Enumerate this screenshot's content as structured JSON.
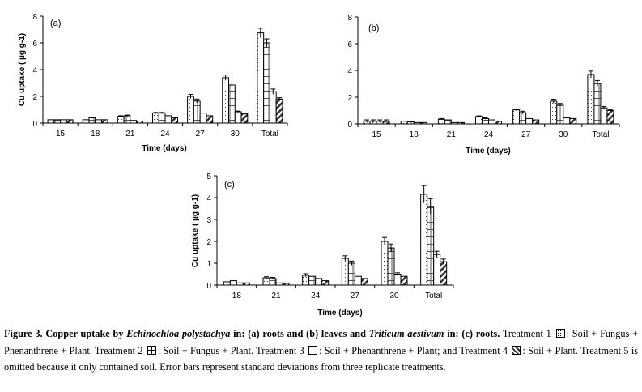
{
  "chart_data": [
    {
      "type": "bar",
      "panel": "(a)",
      "title": "",
      "xlabel": "Time (days)",
      "ylabel": "Cu uptake ( µg g-1)",
      "ylim": [
        0,
        8
      ],
      "yticks": [
        "0",
        "2",
        "4",
        "6",
        "8"
      ],
      "categories": [
        "15",
        "18",
        "21",
        "24",
        "27",
        "30",
        "Total"
      ],
      "series": [
        {
          "name": "Treatment 1",
          "values": [
            0.25,
            0.25,
            0.5,
            0.75,
            2.0,
            3.4,
            6.75
          ],
          "errors": [
            0.02,
            0.02,
            0.05,
            0.05,
            0.15,
            0.2,
            0.35
          ]
        },
        {
          "name": "Treatment 2",
          "values": [
            0.25,
            0.4,
            0.55,
            0.75,
            1.65,
            2.85,
            6.0
          ],
          "errors": [
            0.02,
            0.05,
            0.05,
            0.05,
            0.15,
            0.15,
            0.3
          ]
        },
        {
          "name": "Treatment 3",
          "values": [
            0.25,
            0.25,
            0.2,
            0.55,
            0.75,
            0.85,
            2.35
          ],
          "errors": [
            0.02,
            0.02,
            0.03,
            0.03,
            0.03,
            0.05,
            0.2
          ]
        },
        {
          "name": "Treatment 4",
          "values": [
            0.25,
            0.25,
            0.15,
            0.4,
            0.55,
            0.7,
            1.8
          ],
          "errors": [
            0.02,
            0.02,
            0.03,
            0.05,
            0.03,
            0.05,
            0.1
          ]
        }
      ]
    },
    {
      "type": "bar",
      "panel": "(b)",
      "title": "",
      "xlabel": "Time (days)",
      "ylabel": "",
      "ylim": [
        0,
        8
      ],
      "yticks": [
        "0",
        "2",
        "4",
        "6",
        "8"
      ],
      "categories": [
        "15",
        "18",
        "21",
        "24",
        "27",
        "30",
        "Total"
      ],
      "series": [
        {
          "name": "Treatment 1",
          "values": [
            0.2,
            0.2,
            0.35,
            0.55,
            1.05,
            1.7,
            3.7
          ],
          "errors": [
            0.1,
            0.02,
            0.05,
            0.05,
            0.05,
            0.15,
            0.25
          ]
        },
        {
          "name": "Treatment 2",
          "values": [
            0.2,
            0.15,
            0.3,
            0.4,
            0.85,
            1.45,
            3.05
          ],
          "errors": [
            0.1,
            0.02,
            0.02,
            0.05,
            0.1,
            0.08,
            0.2
          ]
        },
        {
          "name": "Treatment 3",
          "values": [
            0.2,
            0.1,
            0.1,
            0.3,
            0.4,
            0.45,
            1.2
          ],
          "errors": [
            0.1,
            0.01,
            0.01,
            0.02,
            0.03,
            0.03,
            0.1
          ]
        },
        {
          "name": "Treatment 4",
          "values": [
            0.2,
            0.1,
            0.1,
            0.2,
            0.3,
            0.4,
            1.0
          ],
          "errors": [
            0.1,
            0.01,
            0.01,
            0.02,
            0.02,
            0.03,
            0.05
          ]
        }
      ]
    },
    {
      "type": "bar",
      "panel": "(c)",
      "title": "",
      "xlabel": "Time (days)",
      "ylabel": "Cu uptake ( µg g-1)",
      "ylim": [
        0,
        5
      ],
      "yticks": [
        "0",
        "1",
        "2",
        "3",
        "4",
        "5"
      ],
      "categories": [
        "18",
        "21",
        "24",
        "27",
        "30",
        "Total"
      ],
      "series": [
        {
          "name": "Treatment 1",
          "values": [
            0.15,
            0.33,
            0.45,
            1.22,
            2.0,
            4.15
          ],
          "errors": [
            0.01,
            0.05,
            0.07,
            0.12,
            0.18,
            0.4
          ]
        },
        {
          "name": "Treatment 2",
          "values": [
            0.2,
            0.3,
            0.4,
            1.0,
            1.7,
            3.6
          ],
          "errors": [
            0.02,
            0.05,
            0.04,
            0.1,
            0.18,
            0.35
          ]
        },
        {
          "name": "Treatment 3",
          "values": [
            0.1,
            0.1,
            0.3,
            0.4,
            0.5,
            1.4
          ],
          "errors": [
            0.01,
            0.01,
            0.03,
            0.04,
            0.06,
            0.15
          ]
        },
        {
          "name": "Treatment 4",
          "values": [
            0.1,
            0.08,
            0.2,
            0.3,
            0.4,
            1.07
          ],
          "errors": [
            0.01,
            0.01,
            0.02,
            0.04,
            0.04,
            0.12
          ]
        }
      ]
    }
  ],
  "caption": {
    "fig_label": "Figure 3. Copper  uptake by",
    "species1": "Echinochloa polystachya",
    "part1": "in: (a) roots and (b) leaves and",
    "species2": "Triticum aestivum",
    "part2": "in: (c) roots.",
    "t1_prefix": "Treatment 1",
    "t1_text": ": Soil + Fungus + Phenanthrene + Plant. Treatment 2",
    "t2_text": ":  Soil + Fungus + Plant. Treatment 3",
    "t3_text": ":  Soil + Phenanthrene + Plant; and Treatment 4",
    "t4_text": ": Soil + Plant. Treatment 5 is omitted because it only contained soil.  Error bars represent standard deviations from three replicate treatments."
  }
}
